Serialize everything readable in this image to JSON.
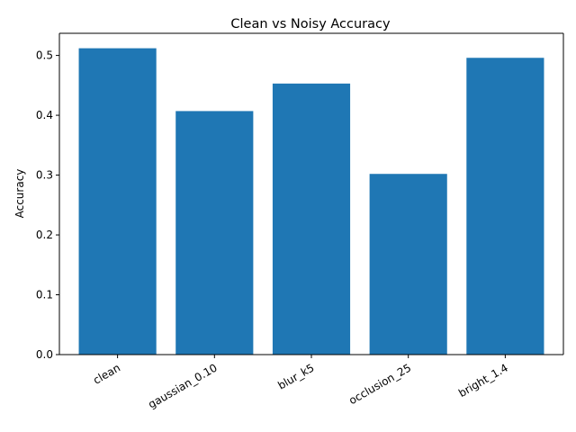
{
  "chart_data": {
    "type": "bar",
    "title": "Clean vs Noisy Accuracy",
    "xlabel": "",
    "ylabel": "Accuracy",
    "categories": [
      "clean",
      "gaussian_0.10",
      "blur_k5",
      "occlusion_25",
      "bright_1.4"
    ],
    "values": [
      0.512,
      0.407,
      0.453,
      0.302,
      0.496
    ],
    "ylim": [
      0,
      0.537
    ],
    "yticks": [
      0.0,
      0.1,
      0.2,
      0.3,
      0.4,
      0.5
    ],
    "ytick_labels": [
      "0.0",
      "0.1",
      "0.2",
      "0.3",
      "0.4",
      "0.5"
    ],
    "grid": false,
    "bar_color": "#1f77b4",
    "xtick_rotation_deg": 30
  }
}
